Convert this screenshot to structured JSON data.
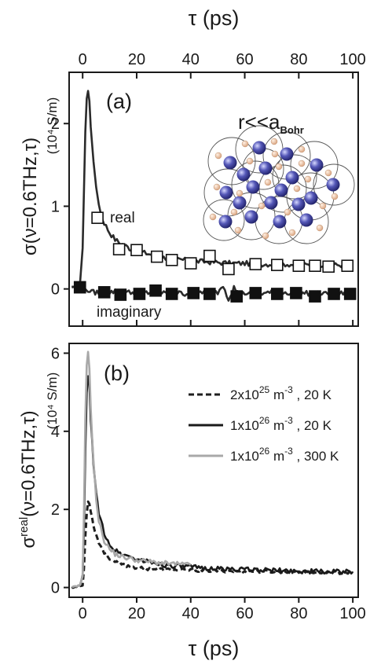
{
  "chart_data": [
    {
      "panel": "a",
      "type": "line",
      "panel_label": "(a)",
      "xlabel_top": "τ (ps)",
      "ylabel": "σ(ν=0.6THz,τ)",
      "yunit": "(10⁴ S/m)",
      "xlim": [
        -5,
        102
      ],
      "ylim": [
        -0.45,
        2.62
      ],
      "xticks": [
        0,
        20,
        40,
        60,
        80,
        100
      ],
      "yticks": [
        0,
        1,
        2
      ],
      "inset_text": "r<<a",
      "inset_subscript": "Bohr",
      "annotations": [
        "real",
        "imaginary"
      ],
      "series": [
        {
          "name": "real",
          "style": "line",
          "color": "#2b2b2b",
          "x": [
            -4,
            -2,
            -1,
            0,
            0.5,
            1,
            1.5,
            2,
            2.5,
            3,
            4,
            5,
            6,
            7,
            8,
            10,
            12,
            14,
            16,
            18,
            20,
            25,
            30,
            35,
            40,
            45,
            50,
            55,
            60,
            65,
            70,
            75,
            80,
            85,
            90,
            95,
            100
          ],
          "y": [
            0.02,
            0.02,
            0.05,
            0.5,
            1.2,
            1.9,
            2.3,
            2.4,
            2.28,
            1.95,
            1.55,
            1.25,
            1.02,
            0.88,
            0.8,
            0.68,
            0.6,
            0.55,
            0.52,
            0.48,
            0.46,
            0.42,
            0.38,
            0.36,
            0.34,
            0.33,
            0.32,
            0.31,
            0.31,
            0.3,
            0.3,
            0.3,
            0.29,
            0.29,
            0.29,
            0.29,
            0.28
          ]
        },
        {
          "name": "real-markers",
          "style": "open-square",
          "x": [
            -1,
            5.5,
            13.5,
            20,
            27.5,
            33,
            40,
            47,
            54,
            64,
            72,
            80,
            86,
            91,
            98
          ],
          "y": [
            0.02,
            0.86,
            0.48,
            0.47,
            0.39,
            0.35,
            0.31,
            0.4,
            0.24,
            0.3,
            0.29,
            0.28,
            0.28,
            0.27,
            0.28
          ]
        },
        {
          "name": "imaginary",
          "style": "line",
          "color": "#2b2b2b",
          "x": [
            -4,
            0,
            2,
            4,
            8,
            12,
            20,
            30,
            40,
            45,
            50,
            52,
            54,
            56,
            58,
            60,
            65,
            70,
            80,
            90,
            100
          ],
          "y": [
            0.02,
            0.02,
            -0.03,
            -0.04,
            -0.05,
            -0.03,
            -0.05,
            -0.04,
            -0.06,
            -0.03,
            -0.04,
            0.05,
            -0.12,
            0.02,
            -0.08,
            -0.05,
            -0.06,
            -0.04,
            -0.05,
            -0.06,
            -0.05
          ]
        },
        {
          "name": "imaginary-markers",
          "style": "filled-square",
          "x": [
            -1,
            8,
            14,
            21,
            27,
            33,
            41,
            47,
            57,
            64,
            72,
            79,
            86,
            93,
            99
          ],
          "y": [
            0.02,
            -0.04,
            -0.07,
            -0.06,
            -0.02,
            -0.06,
            -0.05,
            -0.06,
            -0.09,
            -0.05,
            -0.06,
            -0.05,
            -0.09,
            -0.06,
            -0.06
          ]
        }
      ]
    },
    {
      "panel": "b",
      "type": "line",
      "panel_label": "(b)",
      "xlabel": "τ (ps)",
      "ylabel_main": "σ",
      "ylabel_sup": "real",
      "ylabel_rest": "(ν=0.6THz,τ)",
      "yunit": "(10⁴ S/m)",
      "xlim": [
        -5,
        102
      ],
      "ylim": [
        -0.25,
        6.25
      ],
      "xticks": [
        0,
        20,
        40,
        60,
        80,
        100
      ],
      "yticks": [
        0,
        2,
        4,
        6
      ],
      "legend_placement": "top-right",
      "series": [
        {
          "name": "2x10",
          "name_sup": "25",
          "name_rest": " m",
          "name_sup2": "-3",
          "name_tail": " , 20 K",
          "style": "dashed",
          "color": "#1f1f1f",
          "x": [
            -4,
            0,
            0.5,
            1,
            1.5,
            2,
            2.5,
            3,
            4,
            5,
            6,
            8,
            10,
            12,
            15,
            20,
            30,
            40,
            60,
            80,
            100
          ],
          "y": [
            0,
            0.05,
            0.5,
            1.3,
            1.9,
            2.2,
            2.15,
            1.95,
            1.6,
            1.35,
            1.15,
            0.9,
            0.75,
            0.65,
            0.58,
            0.5,
            0.46,
            0.44,
            0.42,
            0.4,
            0.38
          ]
        },
        {
          "name": "1x10",
          "name_sup": "26",
          "name_rest": " m",
          "name_sup2": "-3",
          "name_tail": " , 20 K",
          "style": "solid",
          "color": "#1a1a1a",
          "x": [
            -4,
            -1,
            0,
            0.5,
            1,
            1.5,
            2,
            2.5,
            3,
            4,
            5,
            6,
            8,
            10,
            12,
            15,
            20,
            25,
            30,
            40,
            50,
            60,
            70,
            80,
            90,
            100
          ],
          "y": [
            0,
            0.05,
            0.3,
            1.5,
            3.5,
            5.0,
            5.4,
            5.2,
            4.3,
            3.2,
            2.4,
            1.9,
            1.4,
            1.1,
            0.95,
            0.85,
            0.72,
            0.65,
            0.58,
            0.52,
            0.48,
            0.46,
            0.44,
            0.42,
            0.41,
            0.4
          ]
        },
        {
          "name": "1x10",
          "name_sup": "26",
          "name_rest": " m",
          "name_sup2": "-3",
          "name_tail": " , 300 K",
          "style": "solid",
          "color": "#a8a8a8",
          "x": [
            -4,
            -1,
            0,
            0.5,
            1,
            1.5,
            2,
            2.5,
            3,
            4,
            5,
            6,
            8,
            10,
            12,
            15,
            20,
            25,
            30,
            35,
            40
          ],
          "y": [
            0,
            0.05,
            0.3,
            2.0,
            4.3,
            5.7,
            6.05,
            5.6,
            4.6,
            3.2,
            2.3,
            1.7,
            1.2,
            0.98,
            0.86,
            0.78,
            0.7,
            0.66,
            0.62,
            0.6,
            0.58
          ]
        }
      ]
    }
  ]
}
